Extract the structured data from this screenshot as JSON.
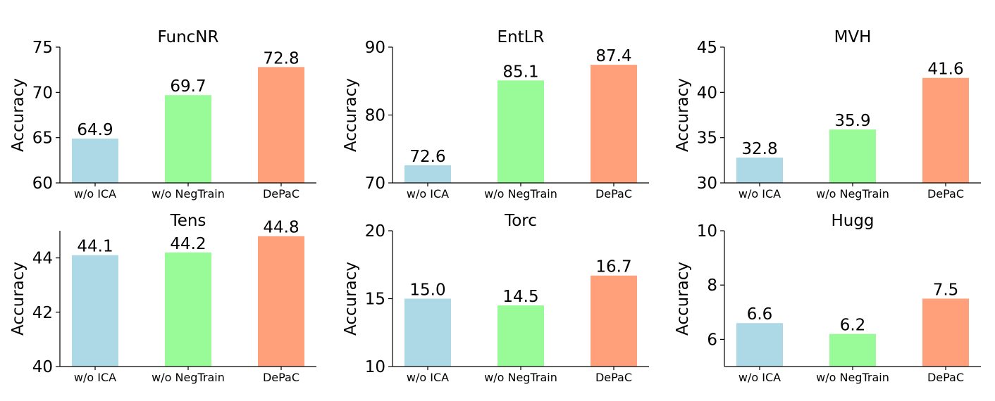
{
  "chart_data": [
    {
      "type": "bar",
      "title": "FuncNR",
      "ylabel": "Accuracy",
      "xlabel": "",
      "categories": [
        "w/o ICA",
        "w/o NegTrain",
        "DePaC"
      ],
      "values": [
        64.9,
        69.7,
        72.8
      ],
      "value_labels": [
        "64.9",
        "69.7",
        "72.8"
      ],
      "ylim": [
        60,
        75
      ],
      "yticks": [
        60,
        65,
        70,
        75
      ],
      "colors": [
        "#add8e6",
        "#98fb98",
        "#ffa07a"
      ]
    },
    {
      "type": "bar",
      "title": "EntLR",
      "ylabel": "Accuracy",
      "xlabel": "",
      "categories": [
        "w/o ICA",
        "w/o NegTrain",
        "DePaC"
      ],
      "values": [
        72.6,
        85.1,
        87.4
      ],
      "value_labels": [
        "72.6",
        "85.1",
        "87.4"
      ],
      "ylim": [
        70,
        90
      ],
      "yticks": [
        70,
        80,
        90
      ],
      "colors": [
        "#add8e6",
        "#98fb98",
        "#ffa07a"
      ]
    },
    {
      "type": "bar",
      "title": "MVH",
      "ylabel": "Accuracy",
      "xlabel": "",
      "categories": [
        "w/o ICA",
        "w/o NegTrain",
        "DePaC"
      ],
      "values": [
        32.8,
        35.9,
        41.6
      ],
      "value_labels": [
        "32.8",
        "35.9",
        "41.6"
      ],
      "ylim": [
        30,
        45
      ],
      "yticks": [
        30,
        35,
        40,
        45
      ],
      "colors": [
        "#add8e6",
        "#98fb98",
        "#ffa07a"
      ]
    },
    {
      "type": "bar",
      "title": "Tens",
      "ylabel": "Accuracy",
      "xlabel": "",
      "categories": [
        "w/o ICA",
        "w/o NegTrain",
        "DePaC"
      ],
      "values": [
        44.1,
        44.2,
        44.8
      ],
      "value_labels": [
        "44.1",
        "44.2",
        "44.8"
      ],
      "ylim": [
        40,
        45
      ],
      "yticks": [
        40,
        42,
        44
      ],
      "colors": [
        "#add8e6",
        "#98fb98",
        "#ffa07a"
      ]
    },
    {
      "type": "bar",
      "title": "Torc",
      "ylabel": "Accuracy",
      "xlabel": "",
      "categories": [
        "w/o ICA",
        "w/o NegTrain",
        "DePaC"
      ],
      "values": [
        15.0,
        14.5,
        16.7
      ],
      "value_labels": [
        "15.0",
        "14.5",
        "16.7"
      ],
      "ylim": [
        10,
        20
      ],
      "yticks": [
        10,
        15,
        20
      ],
      "colors": [
        "#add8e6",
        "#98fb98",
        "#ffa07a"
      ]
    },
    {
      "type": "bar",
      "title": "Hugg",
      "ylabel": "Accuracy",
      "xlabel": "",
      "categories": [
        "w/o ICA",
        "w/o NegTrain",
        "DePaC"
      ],
      "values": [
        6.6,
        6.2,
        7.5
      ],
      "value_labels": [
        "6.6",
        "6.2",
        "7.5"
      ],
      "ylim": [
        5,
        10
      ],
      "yticks": [
        6,
        8,
        10
      ],
      "colors": [
        "#add8e6",
        "#98fb98",
        "#ffa07a"
      ]
    }
  ]
}
